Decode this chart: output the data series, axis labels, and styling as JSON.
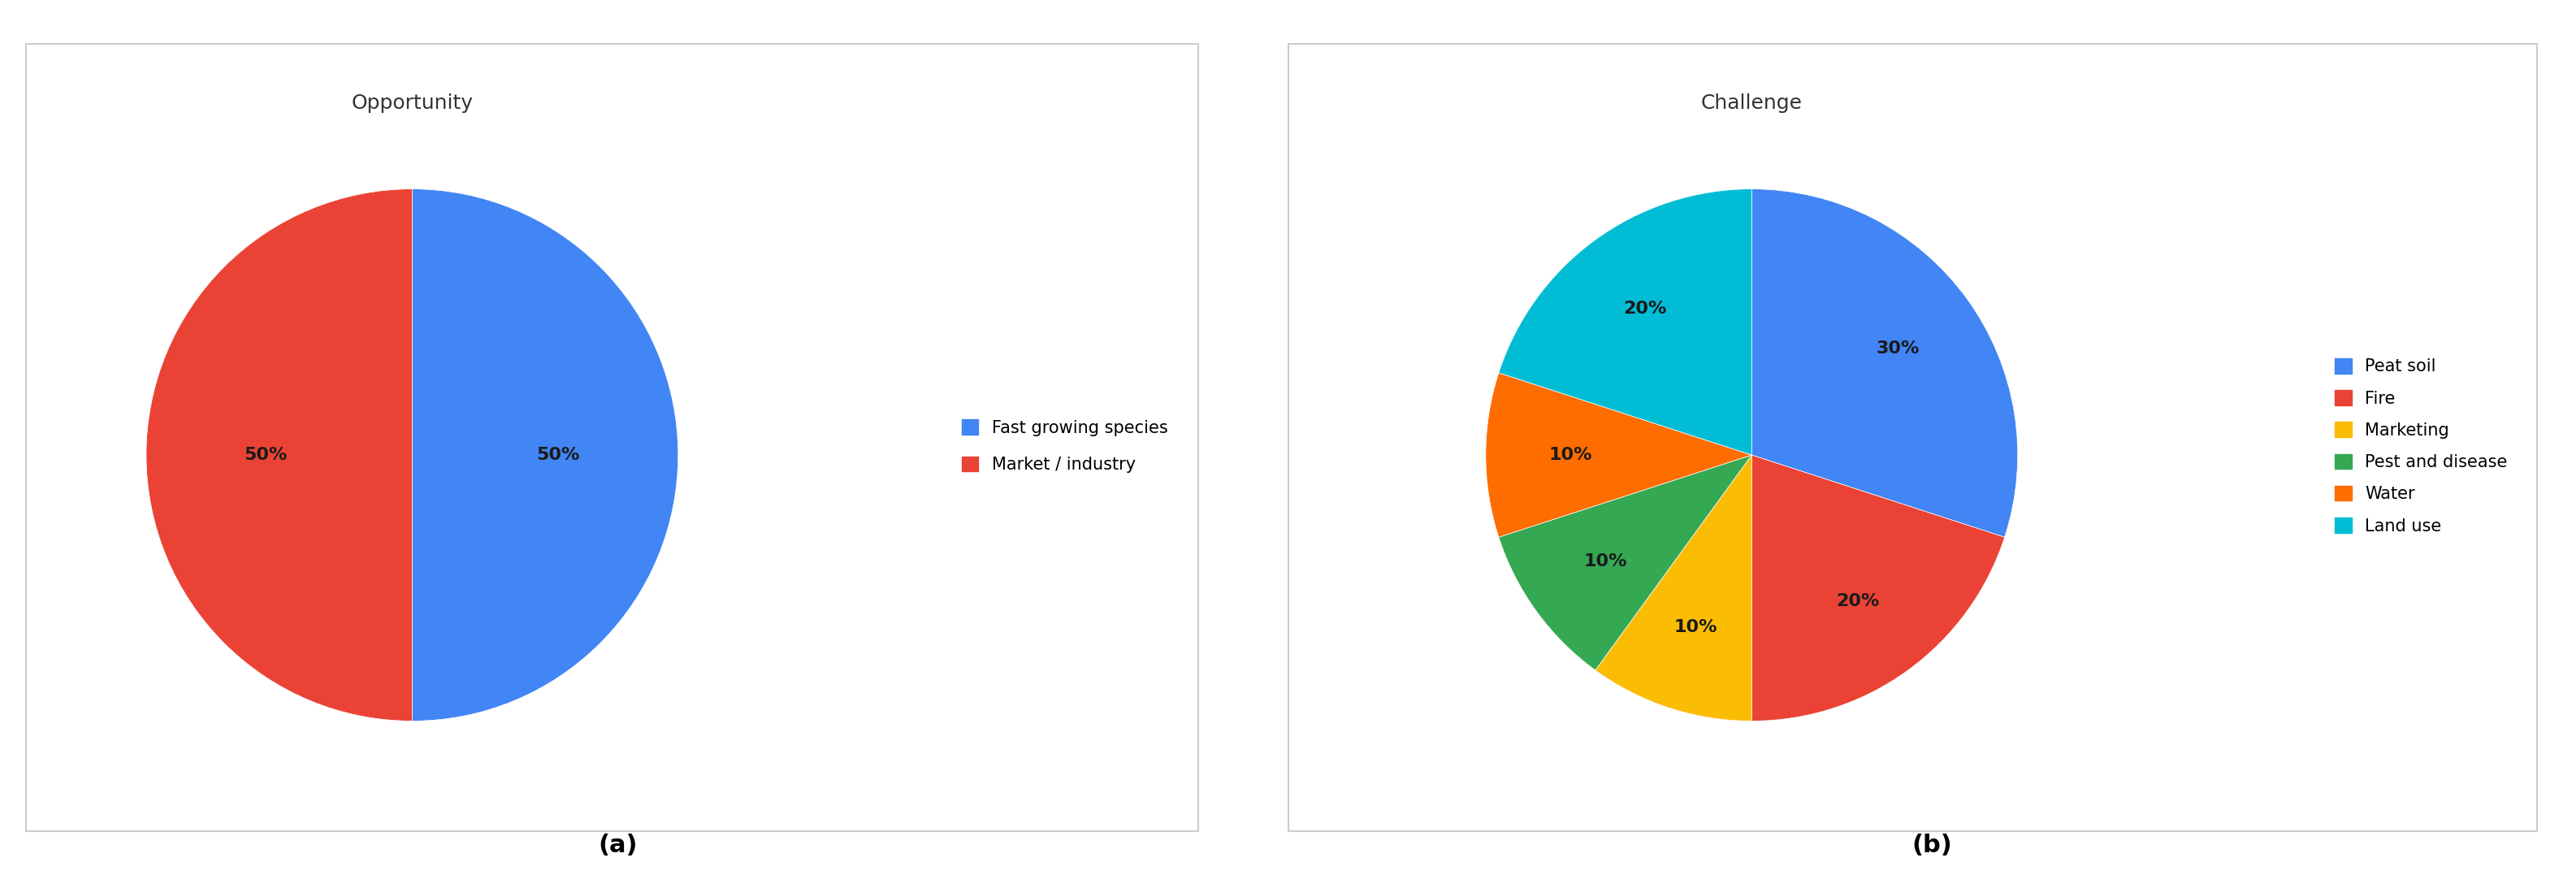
{
  "chart_a": {
    "title": "Opportunity",
    "labels": [
      "Fast growing species",
      "Market / industry"
    ],
    "values": [
      50,
      50
    ],
    "colors": [
      "#4285F4",
      "#EA4335"
    ],
    "text_labels": [
      "50%",
      "50%"
    ],
    "startangle": 90
  },
  "chart_b": {
    "title": "Challenge",
    "labels": [
      "Peat soil",
      "Fire",
      "Marketing",
      "Pest and disease",
      "Water",
      "Land use"
    ],
    "values": [
      30,
      20,
      10,
      10,
      10,
      20
    ],
    "colors": [
      "#4285F4",
      "#EA4335",
      "#FBBC04",
      "#34A853",
      "#FF6D00",
      "#00BCD4"
    ],
    "text_labels": [
      "30%",
      "20%",
      "10%",
      "10%",
      "10%",
      "20%"
    ],
    "startangle": 90
  },
  "label_a": "(a)",
  "label_b": "(b)",
  "background_color": "#FFFFFF",
  "title_fontsize": 18,
  "legend_fontsize": 15,
  "pct_fontsize": 16,
  "sublabel_fontsize": 22,
  "text_color": "#333333",
  "pct_text_color": "#1a1a1a"
}
